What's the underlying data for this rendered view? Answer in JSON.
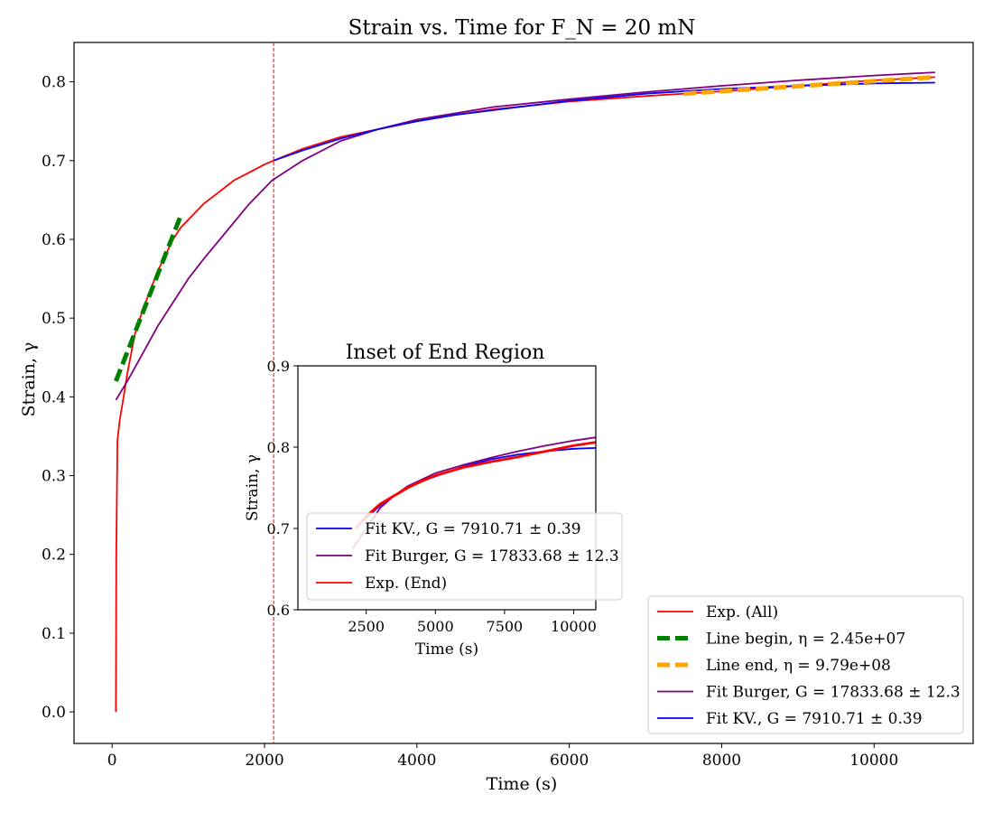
{
  "chart_data": {
    "type": "line",
    "title": "Strain vs. Time for F_N = 20 mN",
    "xlabel": "Time (s)",
    "ylabel": "Strain, γ",
    "xlim": [
      -500,
      11300
    ],
    "ylim": [
      -0.04,
      0.85
    ],
    "xticks": [
      0,
      2000,
      4000,
      6000,
      8000,
      10000
    ],
    "yticks": [
      0.0,
      0.1,
      0.2,
      0.3,
      0.4,
      0.5,
      0.6,
      0.7,
      0.8
    ],
    "grid": false,
    "legend_position": "lower right",
    "vertical_marker": {
      "x": 2120,
      "color": "#ff0000",
      "style": "dashed"
    },
    "series": [
      {
        "name": "Exp. (All)",
        "color": "#ff0000",
        "style": "solid",
        "x": [
          50,
          55,
          70,
          100,
          150,
          200,
          250,
          300,
          400,
          500,
          600,
          700,
          800,
          900,
          1000,
          1200,
          1400,
          1600,
          1800,
          2000,
          2120,
          2500,
          3000,
          3500,
          4000,
          4500,
          5000,
          5500,
          6000,
          7000,
          8000,
          9000,
          10000,
          10800
        ],
        "y": [
          0.0,
          0.2,
          0.345,
          0.37,
          0.4,
          0.43,
          0.455,
          0.48,
          0.51,
          0.535,
          0.56,
          0.58,
          0.6,
          0.615,
          0.625,
          0.645,
          0.66,
          0.675,
          0.685,
          0.695,
          0.7,
          0.715,
          0.73,
          0.74,
          0.75,
          0.758,
          0.765,
          0.77,
          0.775,
          0.782,
          0.788,
          0.795,
          0.802,
          0.806
        ]
      },
      {
        "name": "Line begin, η = 2.45e+07",
        "color": "#008000",
        "style": "dashed",
        "x": [
          50,
          900
        ],
        "y": [
          0.42,
          0.63
        ]
      },
      {
        "name": "Line end, η = 9.79e+08",
        "color": "#ffa500",
        "style": "dashed",
        "x": [
          7500,
          10800
        ],
        "y": [
          0.785,
          0.806
        ]
      },
      {
        "name": "Fit Burger, G = 17833.68 ± 12.3",
        "color": "#800080",
        "style": "solid",
        "x": [
          50,
          200,
          400,
          600,
          800,
          1000,
          1200,
          1500,
          1800,
          2100,
          2500,
          3000,
          3500,
          4000,
          5000,
          6000,
          7000,
          8000,
          9000,
          10000,
          10800
        ],
        "y": [
          0.396,
          0.42,
          0.455,
          0.49,
          0.52,
          0.55,
          0.575,
          0.61,
          0.645,
          0.675,
          0.7,
          0.725,
          0.74,
          0.752,
          0.768,
          0.778,
          0.787,
          0.795,
          0.802,
          0.808,
          0.812
        ]
      },
      {
        "name": "Fit KV., G = 7910.71 ± 0.39",
        "color": "#0000ff",
        "style": "solid",
        "x": [
          2120,
          2500,
          3000,
          3500,
          4000,
          4500,
          5000,
          6000,
          7000,
          8000,
          9000,
          10000,
          10800
        ],
        "y": [
          0.7,
          0.713,
          0.728,
          0.74,
          0.75,
          0.758,
          0.764,
          0.776,
          0.785,
          0.791,
          0.795,
          0.798,
          0.799
        ]
      }
    ],
    "legend": [
      {
        "label": "Exp. (All)",
        "color": "#ff0000",
        "style": "solid"
      },
      {
        "label": "Line begin, η = 2.45e+07",
        "color": "#008000",
        "style": "dashed"
      },
      {
        "label": "Line end, η = 9.79e+08",
        "color": "#ffa500",
        "style": "dashed"
      },
      {
        "label": "Fit Burger, G = 17833.68 ± 12.3",
        "color": "#800080",
        "style": "solid"
      },
      {
        "label": "Fit KV., G = 7910.71 ± 0.39",
        "color": "#0000ff",
        "style": "solid"
      }
    ],
    "inset": {
      "title": "Inset of End Region",
      "xlabel": "Time (s)",
      "ylabel": "Strain, γ",
      "xlim": [
        30,
        10800
      ],
      "ylim": [
        0.6,
        0.9
      ],
      "xticks": [
        2500,
        5000,
        7500,
        10000
      ],
      "yticks": [
        0.6,
        0.7,
        0.8,
        0.9
      ],
      "legend_position": "lower left",
      "legend": [
        {
          "label": "Fit KV., G = 7910.71 ± 0.39",
          "color": "#0000ff",
          "style": "solid"
        },
        {
          "label": "Fit Burger, G = 17833.68 ± 12.3",
          "color": "#800080",
          "style": "solid"
        },
        {
          "label": "Exp. (End)",
          "color": "#ff0000",
          "style": "solid"
        }
      ],
      "series": [
        {
          "name": "Exp. (End)",
          "color": "#ff0000",
          "x": [
            2120,
            2500,
            3000,
            3500,
            4000,
            4500,
            5000,
            5500,
            6000,
            7000,
            8000,
            9000,
            10000,
            10800
          ],
          "y": [
            0.7,
            0.715,
            0.73,
            0.74,
            0.75,
            0.758,
            0.765,
            0.77,
            0.775,
            0.782,
            0.788,
            0.795,
            0.802,
            0.806
          ]
        },
        {
          "name": "Fit Burger, G = 17833.68 ± 12.3",
          "color": "#800080",
          "x": [
            2000,
            2500,
            3000,
            3500,
            4000,
            5000,
            6000,
            7000,
            8000,
            9000,
            10000,
            10800
          ],
          "y": [
            0.675,
            0.7,
            0.725,
            0.74,
            0.752,
            0.768,
            0.778,
            0.787,
            0.795,
            0.802,
            0.808,
            0.812
          ]
        },
        {
          "name": "Fit KV., G = 7910.71 ± 0.39",
          "color": "#0000ff",
          "x": [
            2120,
            2500,
            3000,
            3500,
            4000,
            4500,
            5000,
            6000,
            7000,
            8000,
            9000,
            10000,
            10800
          ],
          "y": [
            0.7,
            0.713,
            0.728,
            0.74,
            0.75,
            0.758,
            0.764,
            0.776,
            0.785,
            0.791,
            0.795,
            0.798,
            0.799
          ]
        }
      ]
    }
  }
}
